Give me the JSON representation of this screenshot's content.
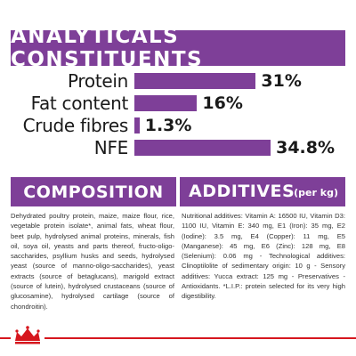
{
  "analyticals": {
    "title": "ANALYTICALS CONSTITUENTS",
    "rows": [
      {
        "label": "Protein",
        "value": "31%",
        "percent": 31
      },
      {
        "label": "Fat content",
        "value": "16%",
        "percent": 16
      },
      {
        "label": "Crude fibres",
        "value": "1.3%",
        "percent": 1.3
      },
      {
        "label": "NFE",
        "value": "34.8%",
        "percent": 34.8
      }
    ]
  },
  "composition": {
    "title": "COMPOSITION",
    "text": "Dehydrated poultry protein, maize, maize flour, rice, vegetable protein isolate*, animal fats, wheat flour, beet pulp, hydrolysed animal proteins, minerals, fish oil, soya oil, yeasts and parts thereof, fructo-oligo-saccharides, psyllium husks and seeds, hydrolysed yeast (source of manno-oligo-saccharides), yeast extracts (source of betaglucans), marigold extract (source of lutein), hydrolysed crustaceans (source of glucosamine), hydrolysed cartilage (source of chondroitin)."
  },
  "additives": {
    "title": "ADDITIVES",
    "unit": "(per kg)",
    "text": "Nutritional additives: Vitamin A: 16500 IU, Vitamin D3: 1100 IU, Vitamin E: 340 mg, E1 (Iron): 35 mg, E2 (Iodine): 3.5 mg, E4 (Copper): 11 mg, E5 (Manganese): 45 mg, E6 (Zinc): 128 mg, E8 (Selenium): 0.06 mg - Technological additives: Clinoptilolite of sedimentary origin: 10 g - Sensory additives: Yucca extract: 125 mg - Preservatives - Antioxidants. *L.I.P.: protein selected for its very high digestibility."
  },
  "colors": {
    "accent": "#7e3f98",
    "footer": "#d6171e"
  },
  "footer": {
    "logo_icon": "royal-canin-crown-logo-icon"
  }
}
